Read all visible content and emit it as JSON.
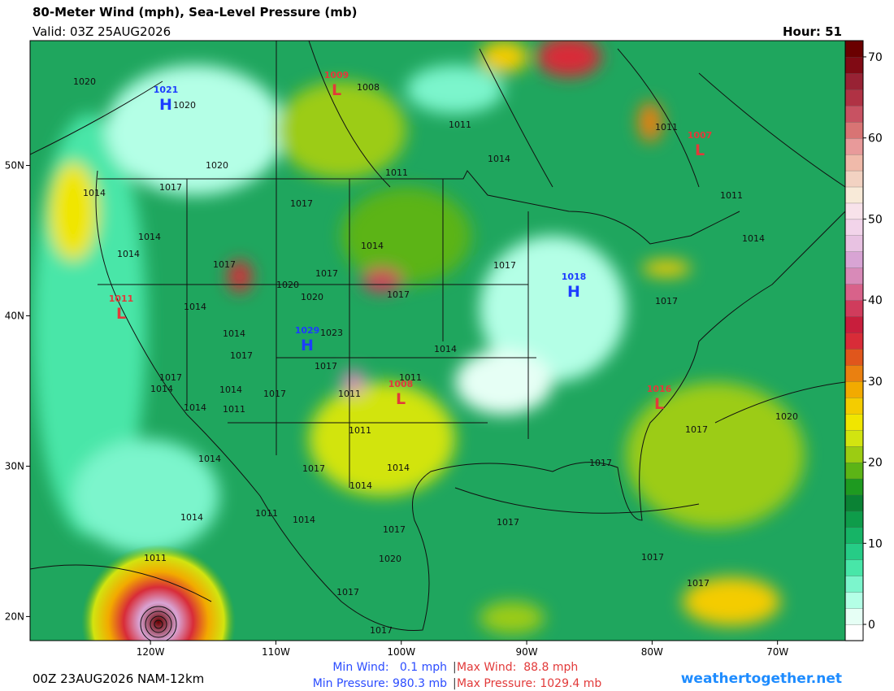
{
  "header": {
    "title": "80-Meter Wind (mph), Sea-Level Pressure (mb)",
    "valid": "Valid: 03Z 25AUG2026",
    "hour": "Hour: 51"
  },
  "map": {
    "xlim": [
      -129.6,
      -64.6
    ],
    "ylim": [
      18.4,
      58.3
    ],
    "xticks": [
      {
        "value": -120,
        "label": "120W"
      },
      {
        "value": -110,
        "label": "110W"
      },
      {
        "value": -100,
        "label": "100W"
      },
      {
        "value": -90,
        "label": "90W"
      },
      {
        "value": -80,
        "label": "80W"
      },
      {
        "value": -70,
        "label": "70W"
      }
    ],
    "yticks": [
      {
        "value": 20,
        "label": "20N"
      },
      {
        "value": 30,
        "label": "30N"
      },
      {
        "value": 40,
        "label": "40N"
      },
      {
        "value": 50,
        "label": "50N"
      }
    ],
    "isobar_labels": [
      "1020",
      "1020",
      "1008",
      "1011",
      "1011",
      "1020",
      "1011",
      "1014",
      "1014",
      "1017",
      "1017",
      "1011",
      "1014",
      "1014",
      "1017",
      "1014",
      "1017",
      "1020",
      "1020",
      "1017",
      "1017",
      "1014",
      "1014",
      "1017",
      "1014",
      "1023",
      "1017",
      "1014",
      "1017",
      "1017",
      "1014",
      "1011",
      "1014",
      "1017",
      "1011",
      "1014",
      "1011",
      "1011",
      "1017",
      "1020",
      "1014",
      "1017",
      "1014",
      "1014",
      "1014",
      "1011",
      "1014",
      "1017",
      "1017",
      "1011",
      "1020",
      "1017",
      "1017",
      "1017",
      "1017",
      "1017"
    ],
    "centers": [
      {
        "pressure": "1021",
        "letter": "H"
      },
      {
        "pressure": "1009",
        "letter": "L"
      },
      {
        "pressure": "1007",
        "letter": "L"
      },
      {
        "pressure": "1011",
        "letter": "L"
      },
      {
        "pressure": "1029",
        "letter": "H"
      },
      {
        "pressure": "1018",
        "letter": "H"
      },
      {
        "pressure": "1008",
        "letter": "L"
      },
      {
        "pressure": "1016",
        "letter": "L"
      }
    ],
    "center_colors": {
      "H": "#1c3cff",
      "L": "#e23a3a"
    }
  },
  "colorbar": {
    "ylim": [
      -2,
      72
    ],
    "yticks": [
      0,
      10,
      20,
      30,
      40,
      50,
      60,
      70
    ],
    "colors": [
      "#ffffff",
      "#e6fff5",
      "#b4ffe6",
      "#7cf5cc",
      "#48e6a8",
      "#26cc86",
      "#16b466",
      "#0e9c4a",
      "#0a8234",
      "#1e9a20",
      "#5cb416",
      "#9ccc12",
      "#d2e410",
      "#f0e600",
      "#f4cc00",
      "#f2aa00",
      "#ea8010",
      "#e0561c",
      "#d82c38",
      "#c81e3c",
      "#d03c5c",
      "#d8628a",
      "#d88ab8",
      "#d8a4d4",
      "#e8c2e2",
      "#f2d4ea",
      "#f8e2ea",
      "#f8ead8",
      "#f2d2c2",
      "#f0baaa",
      "#e89a9a",
      "#d87474",
      "#c85262",
      "#b03244",
      "#982234",
      "#800a14",
      "#6a0000"
    ]
  },
  "footer": {
    "run": "00Z 23AUG2026 NAM-12km",
    "min_wind": "Min Wind:   0.1 mph",
    "max_wind": "Max Wind:  88.8 mph",
    "min_pressure": "Min Pressure: 980.3 mb",
    "max_pressure": "Max Pressure: 1029.4 mb",
    "site": "weathertogether.net"
  }
}
